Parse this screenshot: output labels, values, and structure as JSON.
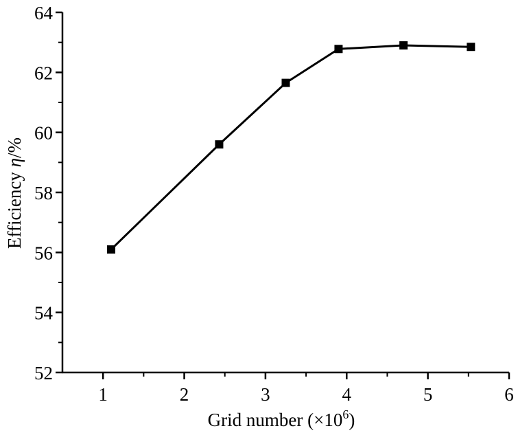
{
  "chart_data": {
    "type": "line",
    "xlabel": "Grid number (×10",
    "xlabel_exponent": "6",
    "xlabel_close": ")",
    "ylabel": "Efficiency",
    "ylabel_symbol": "η",
    "ylabel_unit": "/%",
    "xlim": [
      0.5,
      6
    ],
    "ylim": [
      52,
      64
    ],
    "xticks": [
      1,
      2,
      3,
      4,
      5,
      6
    ],
    "yticks": [
      52,
      54,
      56,
      58,
      60,
      62,
      64
    ],
    "x_tick_labels": [
      "1",
      "2",
      "3",
      "4",
      "5",
      "6"
    ],
    "y_tick_labels": [
      "52",
      "54",
      "56",
      "58",
      "60",
      "62",
      "64"
    ],
    "grid": false,
    "marker": "square",
    "line_color": "#000000",
    "series": [
      {
        "x": [
          1.1,
          2.43,
          3.25,
          3.9,
          4.7,
          5.53
        ],
        "y": [
          56.1,
          59.6,
          61.65,
          62.78,
          62.9,
          62.85
        ]
      }
    ]
  }
}
